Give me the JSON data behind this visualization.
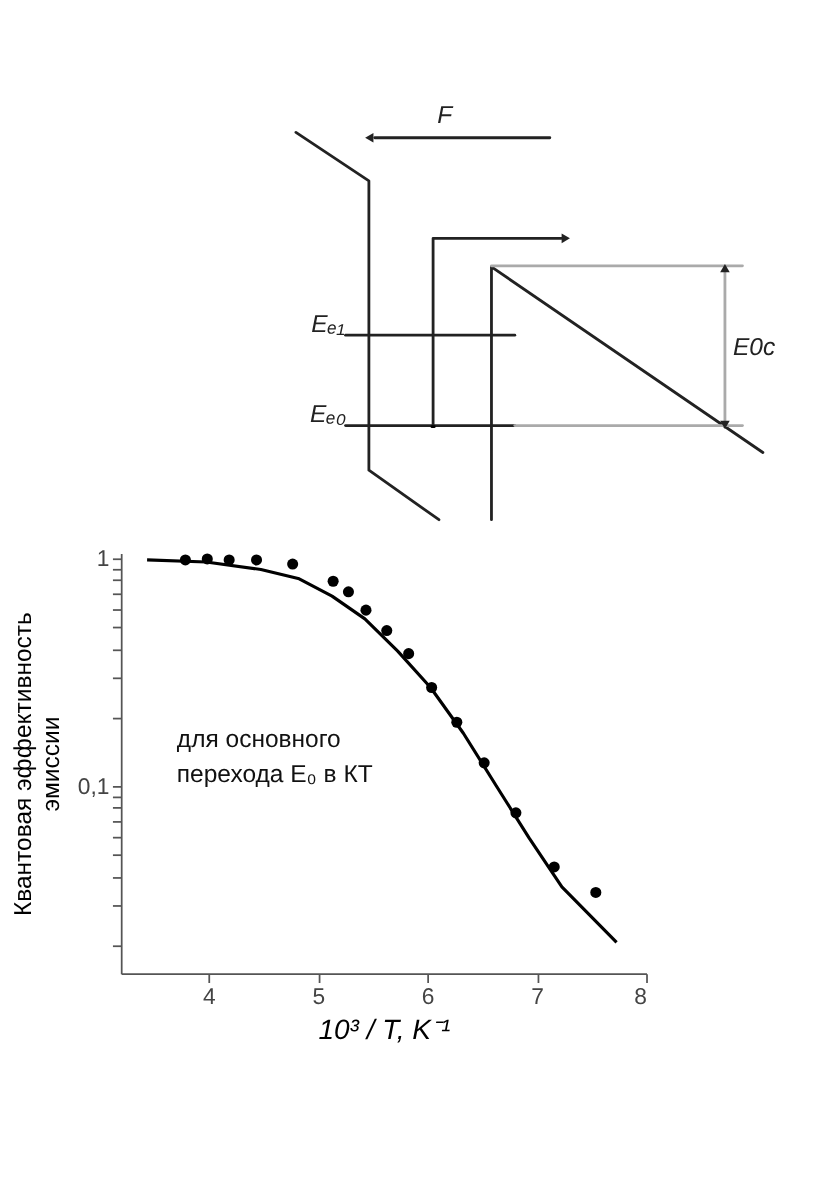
{
  "chart_data": [
    {
      "type": "other",
      "annotations": [
        "F",
        "Eₑ₁",
        "Eₑ₀",
        "E0c"
      ]
    },
    {
      "type": "scatter",
      "xlabel": "10³ / T, K⁻¹",
      "ylabel": "Квантовая эффективность эмиссии",
      "annotations": [
        "для основного перехода E₀ в КТ"
      ],
      "series": [
        {
          "type": "scatter",
          "color": "#000000",
          "marker": "circle",
          "x": [
            3.79,
            3.99,
            4.19,
            4.44,
            4.77,
            5.14,
            5.28,
            5.44,
            5.63,
            5.83,
            6.04,
            6.27,
            6.52,
            6.81,
            7.16,
            7.54
          ],
          "values": [
            0.98,
            0.99,
            0.98,
            0.98,
            0.94,
            0.79,
            0.71,
            0.59,
            0.48,
            0.38,
            0.27,
            0.19,
            0.126,
            0.076,
            0.044,
            0.034
          ]
        },
        {
          "type": "line",
          "color": "#000000",
          "line_style": "solid",
          "x": [
            3.44,
            3.98,
            4.48,
            4.83,
            5.13,
            5.43,
            5.73,
            6.03,
            6.33,
            6.63,
            6.93,
            7.23,
            7.73
          ],
          "values": [
            0.98,
            0.96,
            0.89,
            0.81,
            0.68,
            0.54,
            0.39,
            0.27,
            0.17,
            0.1,
            0.059,
            0.036,
            0.0205
          ]
        }
      ],
      "log": "y",
      "grid": false,
      "xlim": [
        3.2,
        8
      ],
      "xticks": [
        4,
        5,
        6,
        7,
        8
      ],
      "ylim": [
        0.015,
        1.05
      ],
      "yticks": [
        {
          "value": 0.02,
          "label": null
        },
        {
          "value": 0.03,
          "label": null
        },
        {
          "value": 0.04,
          "label": null
        },
        {
          "value": 0.05,
          "label": null
        },
        {
          "value": 0.06,
          "label": null
        },
        {
          "value": 0.07,
          "label": null
        },
        {
          "value": 0.08,
          "label": null
        },
        {
          "value": 0.09,
          "label": null
        },
        {
          "value": 0.1,
          "label": "0,1"
        },
        {
          "value": 0.2,
          "label": null
        },
        {
          "value": 0.3,
          "label": null
        },
        {
          "value": 0.4,
          "label": null
        },
        {
          "value": 0.5,
          "label": null
        },
        {
          "value": 0.6,
          "label": null
        },
        {
          "value": 0.7,
          "label": null
        },
        {
          "value": 0.8,
          "label": null
        },
        {
          "value": 0.9,
          "label": null
        },
        1
      ]
    }
  ]
}
